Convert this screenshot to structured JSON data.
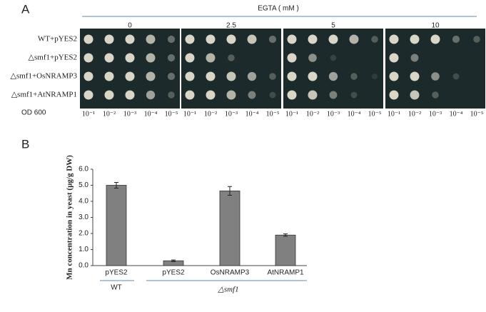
{
  "panel_a": {
    "label": "A",
    "header": "EGTA ( mM )",
    "concentrations": [
      "0",
      "2.5",
      "5",
      "10"
    ],
    "strains": [
      "WT+pYES2",
      "△smf1+pYES2",
      "△smf1+OsNRAMP3",
      "△smf1+AtNRAMP1"
    ],
    "od_label": "OD 600",
    "dilutions": [
      "10⁻¹",
      "10⁻²",
      "10⁻³",
      "10⁻⁴",
      "10⁻⁵"
    ]
  },
  "chart_data": {
    "type": "bar",
    "panel_label": "B",
    "y_label": "Mn concentration in yeast (µg/g DW)",
    "categories": [
      "pYES2",
      "pYES2",
      "OsNRAMP3",
      "AtNRAMP1"
    ],
    "values": [
      5.0,
      0.3,
      4.65,
      1.9
    ],
    "errors": [
      0.18,
      0.05,
      0.27,
      0.07
    ],
    "color": "#808080",
    "ylim": [
      0,
      6
    ],
    "yticks": [
      {
        "value": 0,
        "label": "0.0"
      },
      {
        "value": 1,
        "label": "1.0"
      },
      {
        "value": 2,
        "label": "2.0"
      },
      {
        "value": 3,
        "label": "3.0"
      },
      {
        "value": 4,
        "label": "4.0"
      },
      {
        "value": 5,
        "label": "5.0"
      },
      {
        "value": 6,
        "label": "6.0"
      }
    ],
    "group_labels": [
      "WT",
      "△smf1"
    ]
  }
}
